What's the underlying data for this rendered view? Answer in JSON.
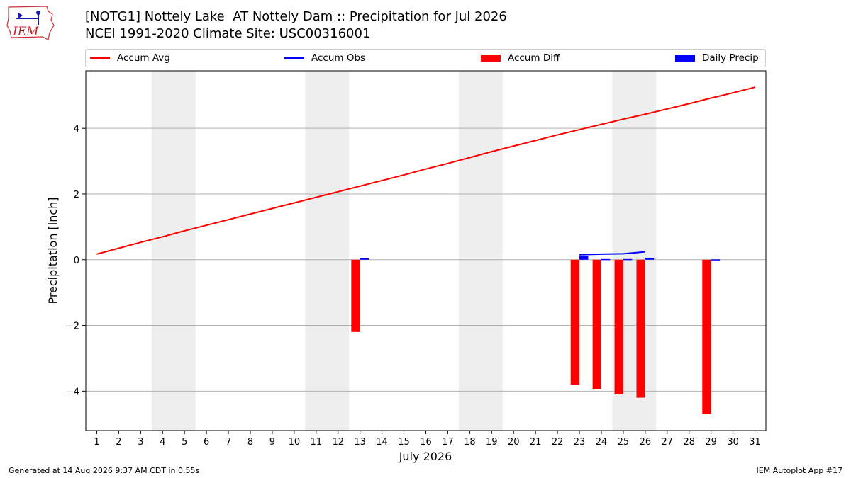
{
  "header": {
    "logo_text": "IEM",
    "title_line1": "[NOTG1] Nottely Lake  AT Nottely Dam :: Precipitation for Jul 2026",
    "title_line2": "NCEI 1991-2020 Climate Site: USC00316001"
  },
  "legend": {
    "items": [
      {
        "label": "Accum Avg",
        "kind": "line",
        "color": "#ff0000"
      },
      {
        "label": "Accum Obs",
        "kind": "line",
        "color": "#0000ff"
      },
      {
        "label": "Accum Diff",
        "kind": "box",
        "color": "#ff0000"
      },
      {
        "label": "Daily Precip",
        "kind": "box",
        "color": "#0000ff"
      }
    ]
  },
  "footer": {
    "generated": "Generated at 14 Aug 2026 9:37 AM CDT in 0.55s",
    "app": "IEM Autoplot App #17"
  },
  "chart_data": {
    "type": "bar",
    "xlabel": "July 2026",
    "ylabel": "Precipitation [inch]",
    "xlim": [
      0.5,
      31.5
    ],
    "ylim": [
      -5.2,
      5.75
    ],
    "yticks": [
      -4,
      -2,
      0,
      2,
      4
    ],
    "ytick_labels": [
      "−4",
      "−2",
      "0",
      "2",
      "4"
    ],
    "xticks": [
      1,
      2,
      3,
      4,
      5,
      6,
      7,
      8,
      9,
      10,
      11,
      12,
      13,
      14,
      15,
      16,
      17,
      18,
      19,
      20,
      21,
      22,
      23,
      24,
      25,
      26,
      27,
      28,
      29,
      30,
      31
    ],
    "grid": "horizontal",
    "weekend_shading": [
      [
        3.5,
        5.5
      ],
      [
        10.5,
        12.5
      ],
      [
        17.5,
        19.5
      ],
      [
        24.5,
        26.5
      ]
    ],
    "series": [
      {
        "name": "Accum Avg",
        "type": "line",
        "color": "#ff0000",
        "x": [
          1,
          2,
          3,
          4,
          5,
          6,
          7,
          8,
          9,
          10,
          11,
          12,
          13,
          14,
          15,
          16,
          17,
          18,
          19,
          20,
          21,
          22,
          23,
          24,
          25,
          26,
          27,
          28,
          29,
          30,
          31
        ],
        "values": [
          0.17,
          0.35,
          0.53,
          0.7,
          0.88,
          1.05,
          1.22,
          1.39,
          1.56,
          1.73,
          1.9,
          2.07,
          2.24,
          2.41,
          2.58,
          2.76,
          2.93,
          3.11,
          3.29,
          3.46,
          3.63,
          3.8,
          3.96,
          4.12,
          4.28,
          4.43,
          4.59,
          4.75,
          4.92,
          5.08,
          5.25
        ]
      },
      {
        "name": "Accum Obs",
        "type": "line",
        "color": "#0000ff",
        "x": [
          23,
          24,
          25,
          26
        ],
        "values": [
          0.15,
          0.17,
          0.18,
          0.24
        ]
      },
      {
        "name": "Accum Diff",
        "type": "bar",
        "color": "#ff0000",
        "x": [
          13,
          23,
          24,
          25,
          26,
          29
        ],
        "values": [
          -2.2,
          -3.8,
          -3.95,
          -4.1,
          -4.2,
          -4.7
        ]
      },
      {
        "name": "Daily Precip",
        "type": "bar",
        "color": "#0000ff",
        "x": [
          13,
          23,
          24,
          25,
          26,
          29
        ],
        "values": [
          0.04,
          0.11,
          0.02,
          0.02,
          0.06,
          0.01
        ]
      }
    ]
  }
}
